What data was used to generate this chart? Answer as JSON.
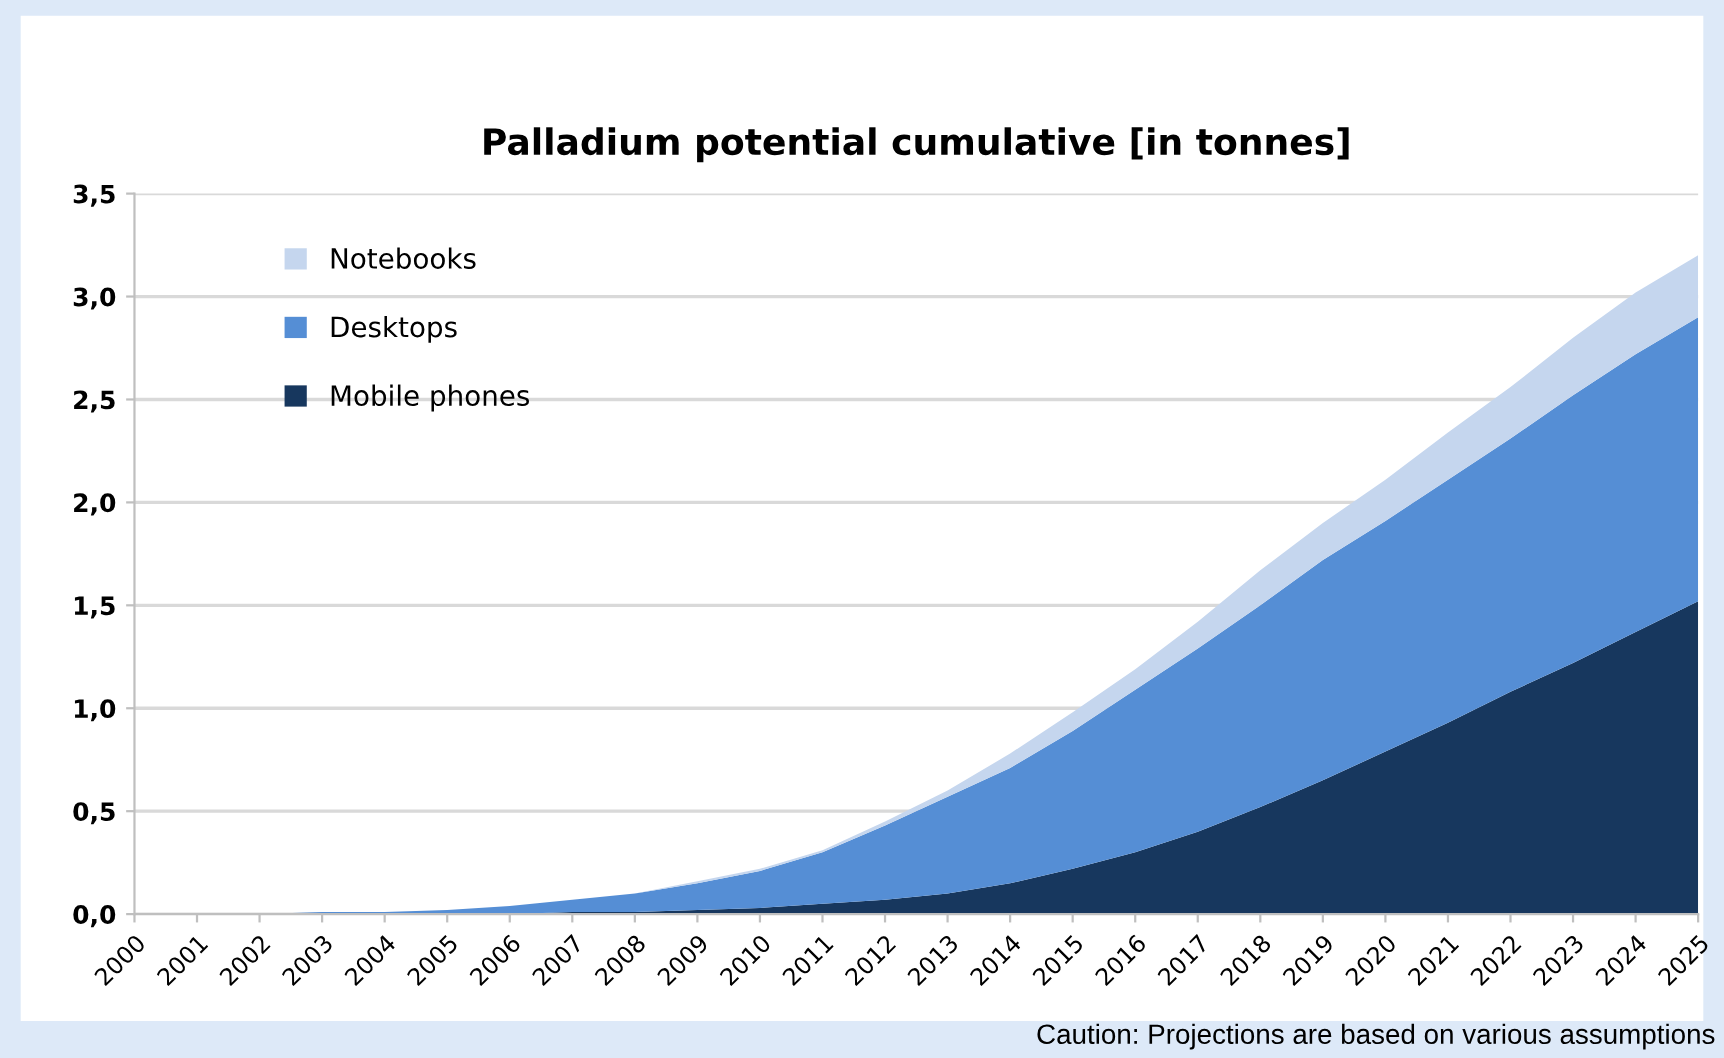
{
  "chart_data": {
    "type": "area",
    "stacked": true,
    "title": "Palladium potential cumulative [in tonnes]",
    "categories": [
      "2000",
      "2001",
      "2002",
      "2003",
      "2004",
      "2005",
      "2006",
      "2007",
      "2008",
      "2009",
      "2010",
      "2011",
      "2012",
      "2013",
      "2014",
      "2015",
      "2016",
      "2017",
      "2018",
      "2019",
      "2020",
      "2021",
      "2022",
      "2023",
      "2024",
      "2025"
    ],
    "series": [
      {
        "name": "Mobile phones",
        "color": "#17375e",
        "values": [
          0,
          0,
          0,
          0,
          0,
          0,
          0,
          0.01,
          0.01,
          0.02,
          0.03,
          0.05,
          0.07,
          0.1,
          0.15,
          0.22,
          0.3,
          0.4,
          0.52,
          0.65,
          0.79,
          0.93,
          1.08,
          1.22,
          1.37,
          1.52
        ]
      },
      {
        "name": "Desktops",
        "color": "#558ed5",
        "values": [
          0,
          0,
          0,
          0.01,
          0.01,
          0.02,
          0.04,
          0.06,
          0.09,
          0.13,
          0.18,
          0.25,
          0.36,
          0.47,
          0.56,
          0.67,
          0.79,
          0.89,
          0.98,
          1.07,
          1.12,
          1.18,
          1.23,
          1.3,
          1.35,
          1.38
        ]
      },
      {
        "name": "Notebooks",
        "color": "#c5d6ee",
        "values": [
          0,
          0,
          0,
          0,
          0,
          0,
          0,
          0,
          0,
          0.01,
          0.01,
          0.01,
          0.02,
          0.03,
          0.07,
          0.09,
          0.1,
          0.13,
          0.17,
          0.18,
          0.2,
          0.23,
          0.25,
          0.28,
          0.3,
          0.3
        ]
      }
    ],
    "ylim": [
      0,
      3.5
    ],
    "yticks": [
      {
        "value": 0,
        "label": "0,0"
      },
      {
        "value": 0.5,
        "label": "0,5"
      },
      {
        "value": 1,
        "label": "1,0"
      },
      {
        "value": 1.5,
        "label": "1,5"
      },
      {
        "value": 2,
        "label": "2,0"
      },
      {
        "value": 2.5,
        "label": "2,5"
      },
      {
        "value": 3,
        "label": "3,0"
      },
      {
        "value": 3.5,
        "label": "3,5"
      }
    ],
    "grid": "y",
    "legend": "top left",
    "annotations": [
      "Caution: Projections are based on various assumptions"
    ]
  }
}
